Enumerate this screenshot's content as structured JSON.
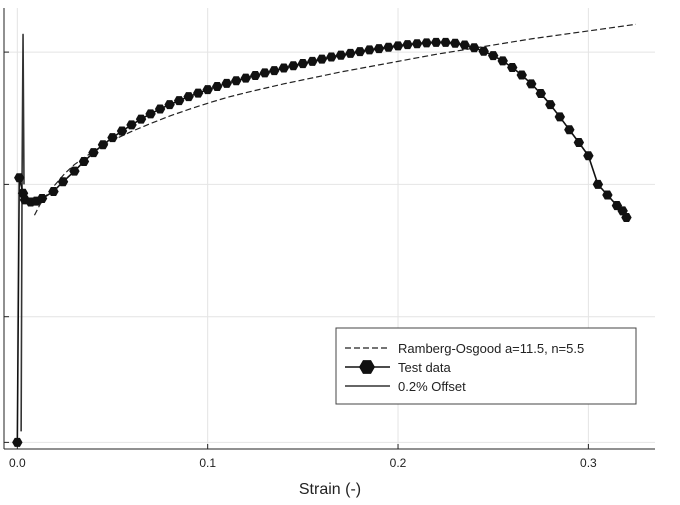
{
  "chart_data": {
    "type": "line",
    "xlabel": "Strain (-)",
    "ylabel": "",
    "xlim": [
      -0.007,
      0.335
    ],
    "ylim": [
      0,
      1
    ],
    "xticks": [
      0.0,
      0.1,
      0.2,
      0.3
    ],
    "xtick_labels": [
      "0.0",
      "0.1",
      "0.2",
      "0.3"
    ],
    "yticks": [
      0.015,
      0.3,
      0.6,
      0.9
    ],
    "grid": true,
    "legend_position": "bottom-right",
    "series": [
      {
        "name": "Ramberg-Osgood a=11.5, n=5.5",
        "style": "dashed",
        "color": "#222222",
        "x": [
          0.009,
          0.012,
          0.016,
          0.02,
          0.025,
          0.03,
          0.04,
          0.05,
          0.06,
          0.07,
          0.08,
          0.09,
          0.1,
          0.11,
          0.12,
          0.13,
          0.14,
          0.15,
          0.16,
          0.17,
          0.18,
          0.19,
          0.2,
          0.21,
          0.22,
          0.23,
          0.24,
          0.25,
          0.26,
          0.27,
          0.28,
          0.29,
          0.3,
          0.31,
          0.32,
          0.325
        ],
        "y": [
          0.53,
          0.555,
          0.58,
          0.6,
          0.625,
          0.645,
          0.675,
          0.7,
          0.72,
          0.738,
          0.755,
          0.77,
          0.784,
          0.797,
          0.808,
          0.818,
          0.828,
          0.837,
          0.846,
          0.855,
          0.863,
          0.871,
          0.879,
          0.887,
          0.895,
          0.902,
          0.909,
          0.916,
          0.923,
          0.93,
          0.936,
          0.942,
          0.948,
          0.954,
          0.96,
          0.963
        ]
      },
      {
        "name": "Test data",
        "style": "line+hexagon",
        "color": "#111111",
        "x": [
          0.0,
          0.001,
          0.003,
          0.004,
          0.007,
          0.01,
          0.013,
          0.019,
          0.024,
          0.03,
          0.035,
          0.04,
          0.045,
          0.05,
          0.055,
          0.06,
          0.065,
          0.07,
          0.075,
          0.08,
          0.085,
          0.09,
          0.095,
          0.1,
          0.105,
          0.11,
          0.115,
          0.12,
          0.125,
          0.13,
          0.135,
          0.14,
          0.145,
          0.15,
          0.155,
          0.16,
          0.165,
          0.17,
          0.175,
          0.18,
          0.185,
          0.19,
          0.195,
          0.2,
          0.205,
          0.21,
          0.215,
          0.22,
          0.225,
          0.23,
          0.235,
          0.24,
          0.245,
          0.25,
          0.255,
          0.26,
          0.265,
          0.27,
          0.275,
          0.28,
          0.285,
          0.29,
          0.295,
          0.3,
          0.305,
          0.31,
          0.315,
          0.318,
          0.32
        ],
        "y": [
          0.015,
          0.615,
          0.58,
          0.565,
          0.56,
          0.562,
          0.568,
          0.584,
          0.606,
          0.63,
          0.652,
          0.672,
          0.69,
          0.706,
          0.721,
          0.735,
          0.748,
          0.76,
          0.771,
          0.781,
          0.79,
          0.799,
          0.807,
          0.815,
          0.822,
          0.829,
          0.835,
          0.841,
          0.847,
          0.853,
          0.858,
          0.864,
          0.869,
          0.874,
          0.879,
          0.884,
          0.889,
          0.893,
          0.897,
          0.901,
          0.905,
          0.908,
          0.911,
          0.914,
          0.917,
          0.919,
          0.921,
          0.922,
          0.922,
          0.92,
          0.916,
          0.91,
          0.902,
          0.892,
          0.88,
          0.865,
          0.848,
          0.828,
          0.806,
          0.781,
          0.753,
          0.724,
          0.695,
          0.665,
          0.6,
          0.576,
          0.552,
          0.54,
          0.525
        ]
      },
      {
        "name": "0.2% Offset",
        "style": "solid",
        "color": "#333333",
        "x": [
          0.002,
          0.0025,
          0.003,
          0.0035
        ],
        "y": [
          0.04,
          0.62,
          0.94,
          0.6
        ]
      }
    ]
  }
}
